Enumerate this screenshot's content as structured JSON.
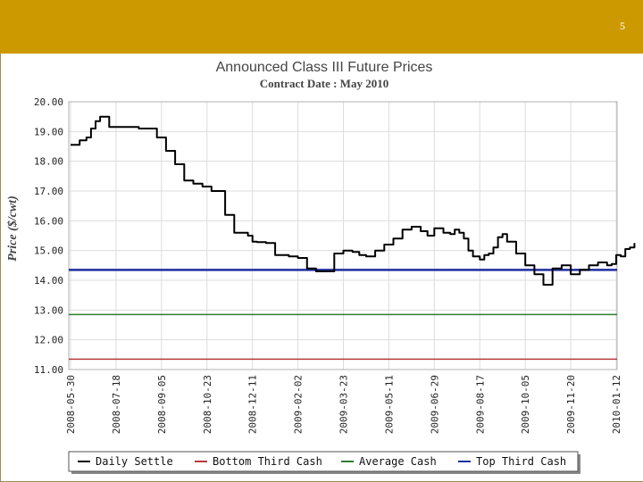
{
  "slide": {
    "number": "5"
  },
  "colors": {
    "header": "#cc9a00",
    "daily_settle": "#000000",
    "bottom_third": "#b53a3a",
    "average": "#2e7d32",
    "top_third": "#1f2e9e",
    "grid": "#dddddd",
    "plot_border": "#b0b0b0"
  },
  "chart_data": {
    "type": "line",
    "title": "Announced Class III  Future Prices",
    "subtitle": "Contract Date : May 2010",
    "ylabel": "Price ($/cwt)",
    "xlabel": "",
    "ylim": [
      11,
      20
    ],
    "y_ticks": [
      "20.00",
      "19.00",
      "18.00",
      "17.00",
      "16.00",
      "15.00",
      "14.00",
      "13.00",
      "12.00",
      "11.00"
    ],
    "x_ticks": [
      "2008-05-30",
      "2008-07-18",
      "2008-09-05",
      "2008-10-23",
      "2008-12-11",
      "2009-02-02",
      "2009-03-23",
      "2009-05-11",
      "2009-06-29",
      "2009-08-17",
      "2009-10-05",
      "2009-11-20",
      "2010-01-12"
    ],
    "grid": true,
    "legend_position": "bottom",
    "series": [
      {
        "name": "Daily Settle",
        "x_index": [
          0,
          0.2,
          0.35,
          0.45,
          0.55,
          0.65,
          0.75,
          0.85,
          1.0,
          1.3,
          1.5,
          1.9,
          2.1,
          2.3,
          2.5,
          2.7,
          2.9,
          3.1,
          3.4,
          3.6,
          3.9,
          4.0,
          4.1,
          4.3,
          4.5,
          4.8,
          5.0,
          5.2,
          5.4,
          5.6,
          5.8,
          6.0,
          6.2,
          6.35,
          6.5,
          6.7,
          6.9,
          7.1,
          7.3,
          7.5,
          7.7,
          7.85,
          8.0,
          8.2,
          8.35,
          8.45,
          8.55,
          8.65,
          8.75,
          8.85,
          9.0,
          9.1,
          9.2,
          9.3,
          9.4,
          9.5,
          9.6,
          9.8,
          10.0,
          10.2,
          10.4,
          10.6,
          10.8,
          11.0,
          11.2,
          11.4,
          11.6,
          11.8,
          11.9,
          12.0,
          12.1,
          12.2,
          12.3,
          12.4
        ],
        "values": [
          18.55,
          18.7,
          18.8,
          19.1,
          19.35,
          19.5,
          19.5,
          19.15,
          19.15,
          19.15,
          19.1,
          18.8,
          18.35,
          17.9,
          17.35,
          17.25,
          17.15,
          17.0,
          16.2,
          15.6,
          15.5,
          15.3,
          15.28,
          15.25,
          14.85,
          14.8,
          14.75,
          14.4,
          14.3,
          14.3,
          14.9,
          15.0,
          14.95,
          14.85,
          14.8,
          15.0,
          15.2,
          15.4,
          15.7,
          15.8,
          15.65,
          15.5,
          15.75,
          15.6,
          15.55,
          15.7,
          15.6,
          15.4,
          15.0,
          14.8,
          14.7,
          14.85,
          14.9,
          15.1,
          15.45,
          15.55,
          15.3,
          14.9,
          14.5,
          14.2,
          13.85,
          14.4,
          14.5,
          14.2,
          14.35,
          14.5,
          14.6,
          14.5,
          14.55,
          14.85,
          14.8,
          15.05,
          15.1,
          15.25
        ],
        "color": "#000000"
      },
      {
        "name": "Bottom Third Cash",
        "values": [
          11.35
        ],
        "color": "#b53a3a"
      },
      {
        "name": "Average Cash",
        "values": [
          12.85
        ],
        "color": "#2e7d32"
      },
      {
        "name": "Top Third Cash",
        "values": [
          14.35
        ],
        "color": "#1f2e9e"
      }
    ]
  }
}
